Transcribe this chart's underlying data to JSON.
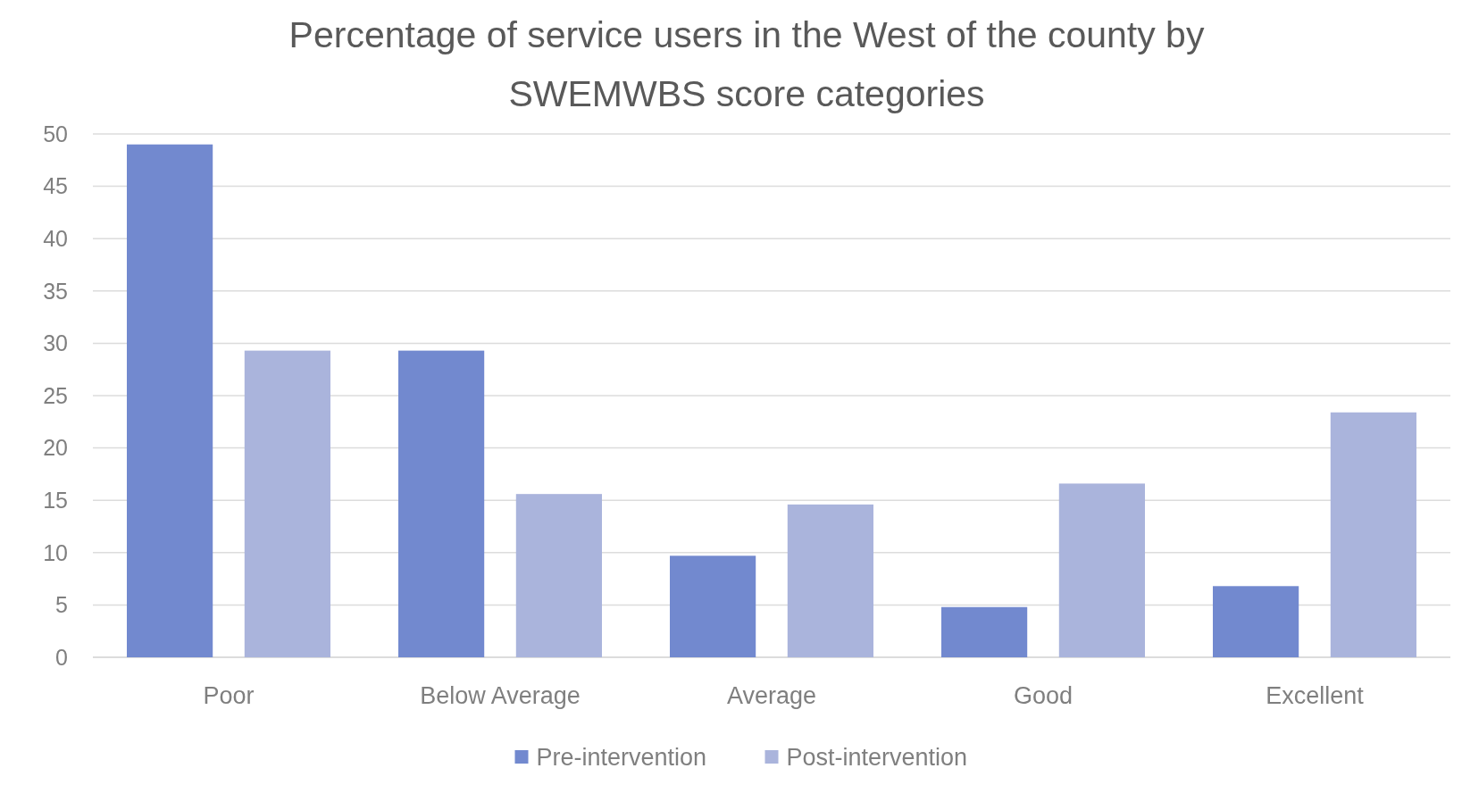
{
  "chart_data": {
    "type": "bar",
    "title": "Percentage of service users in the West of the county by SWEMWBS score categories",
    "categories": [
      "Poor",
      "Below Average",
      "Average",
      "Good",
      "Excellent"
    ],
    "series": [
      {
        "name": "Pre-intervention",
        "color": "#7289cf",
        "values": [
          49,
          29.3,
          9.7,
          4.8,
          6.8
        ]
      },
      {
        "name": "Post-intervention",
        "color": "#aab4dc",
        "values": [
          29.3,
          15.6,
          14.6,
          16.6,
          23.4
        ]
      }
    ],
    "ylim": [
      0,
      50
    ],
    "yticks": [
      0,
      5,
      10,
      15,
      20,
      25,
      30,
      35,
      40,
      45,
      50
    ],
    "grid": "y",
    "legend": "bottom"
  }
}
